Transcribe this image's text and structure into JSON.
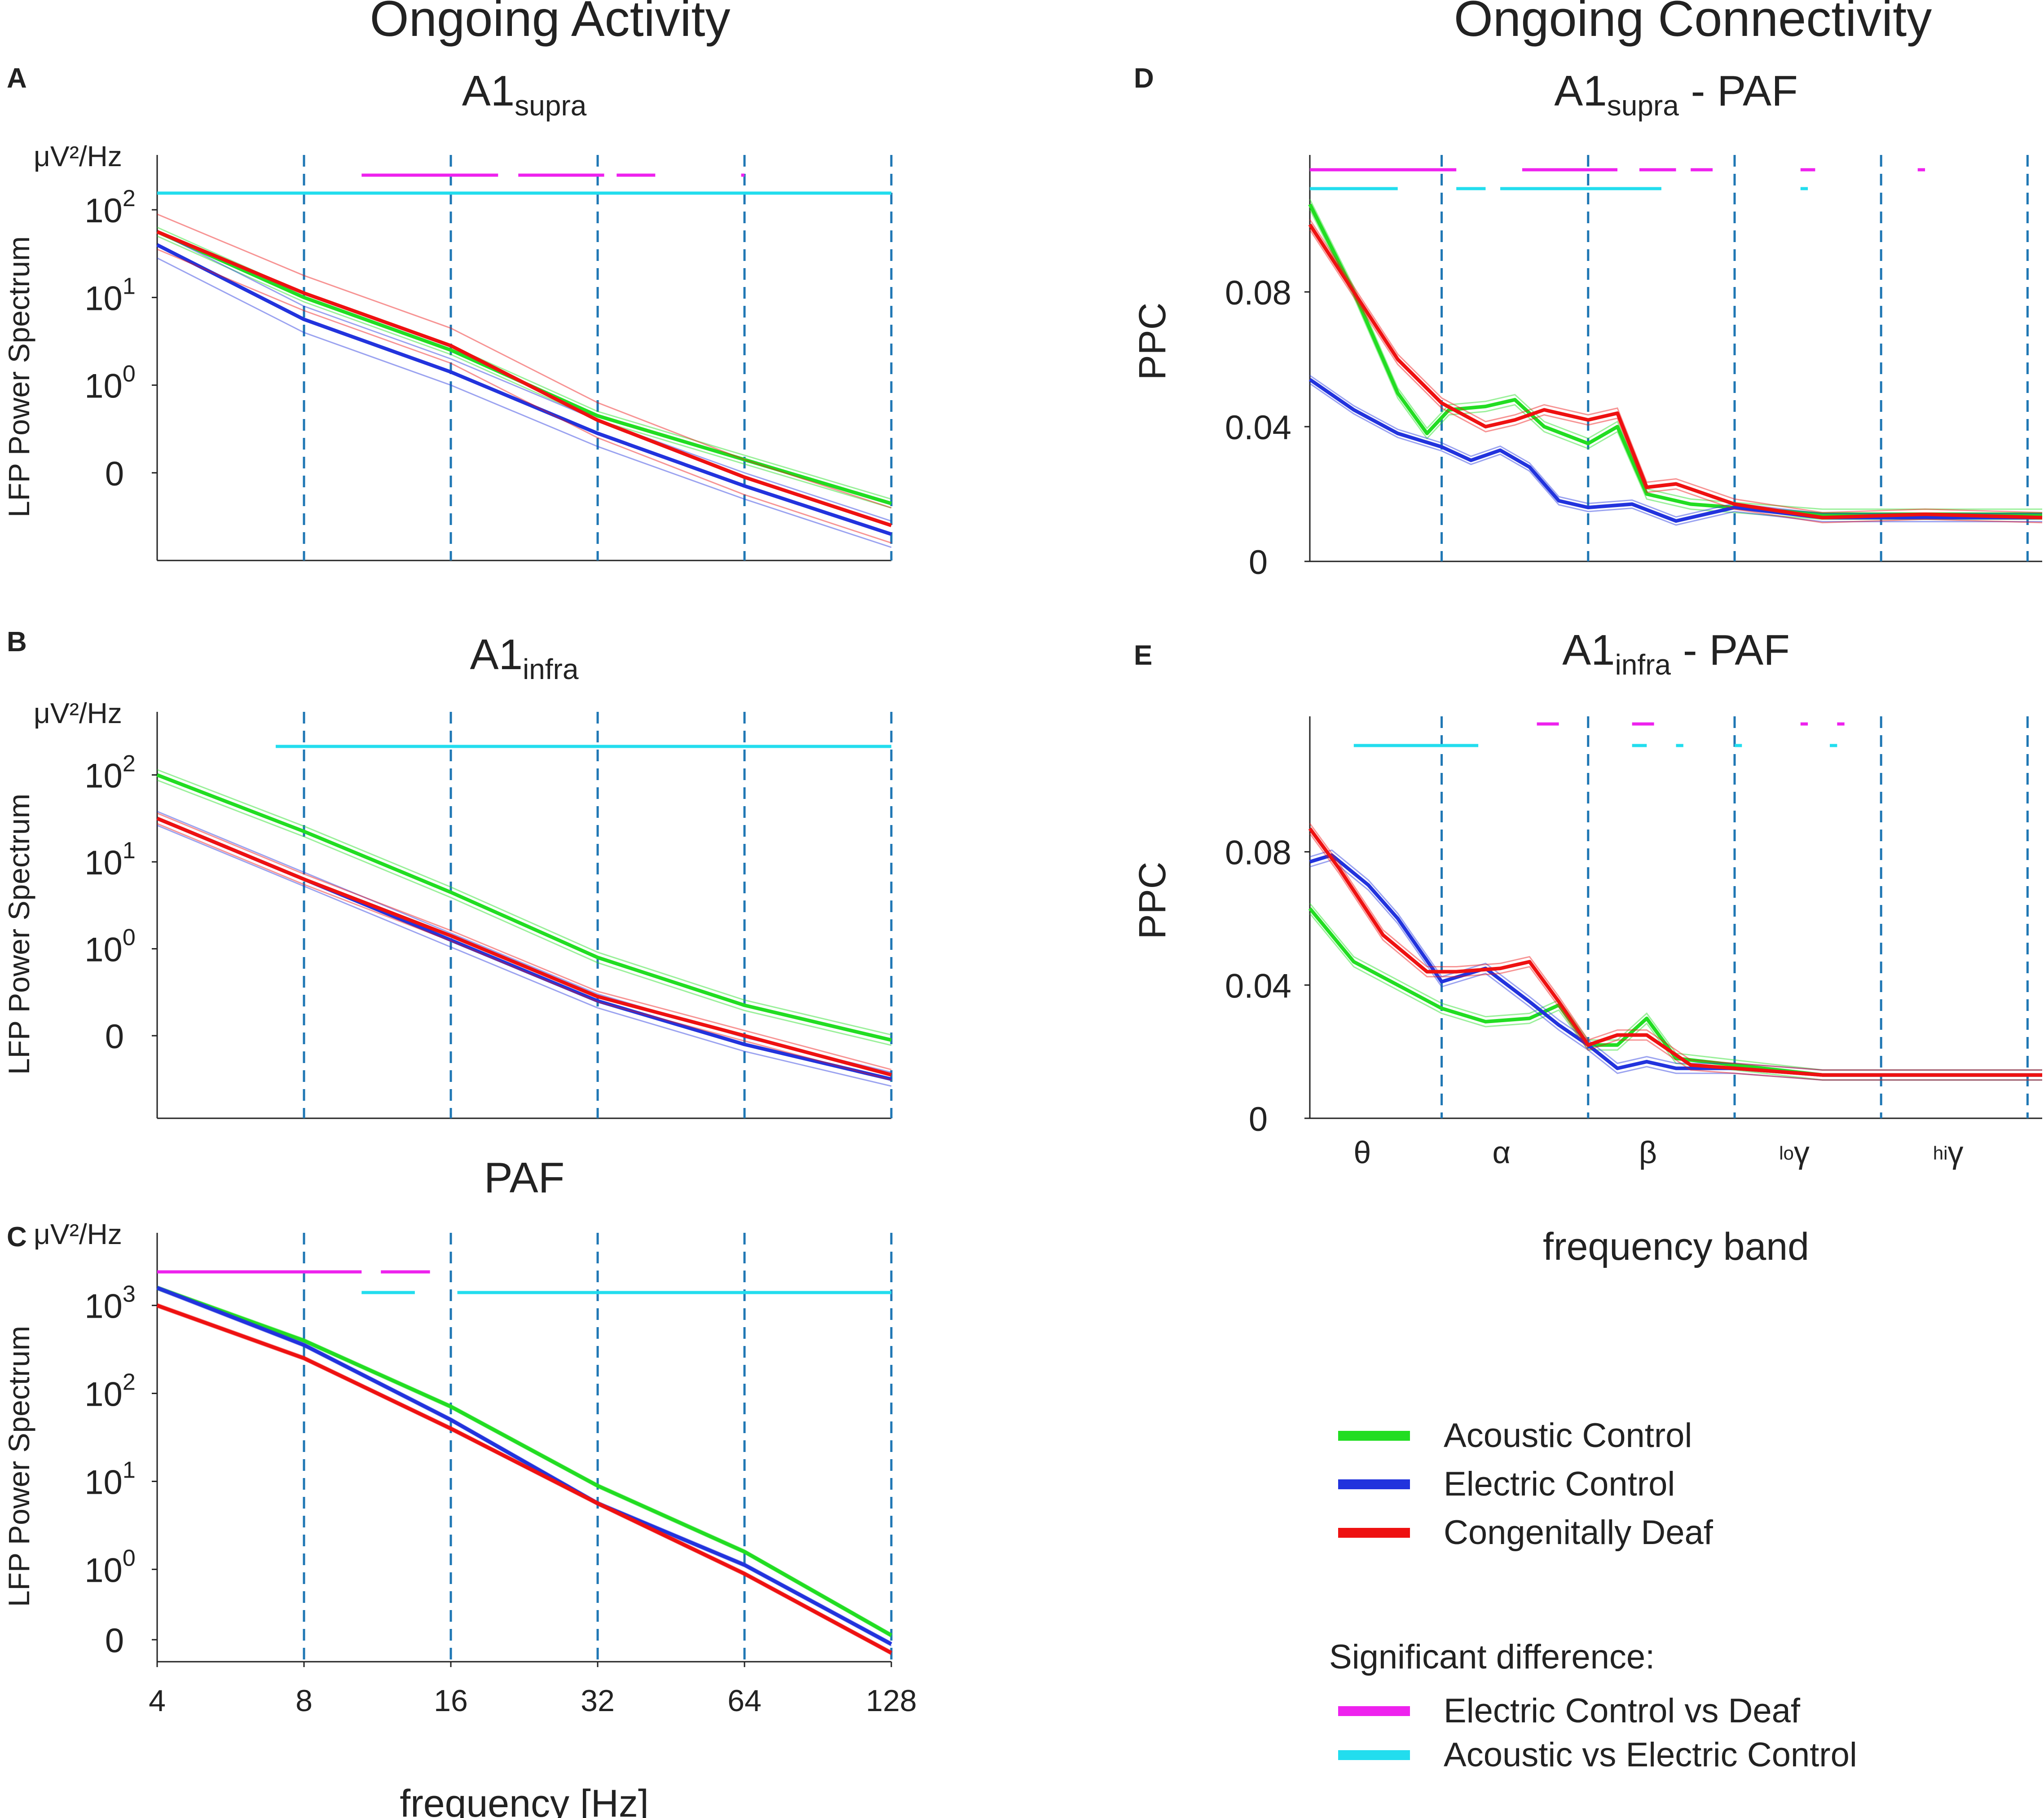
{
  "headings": {
    "left": "Ongoing Activity",
    "right": "Ongoing Connectivity"
  },
  "colors": {
    "acoustic": "#22dd22",
    "electric": "#2233dd",
    "deaf": "#ee1111",
    "sig_electric_vs_deaf": "#ee22ee",
    "sig_acoustic_vs_electric": "#22ddee",
    "band_line": "#1f77b4"
  },
  "legend": {
    "acoustic": "Acoustic Control",
    "electric": "Electric Control",
    "deaf": "Congenitally Deaf",
    "sig_title": "Significant difference:",
    "sig_magenta": "Electric Control vs Deaf",
    "sig_cyan": "Acoustic vs Electric Control"
  },
  "chart_data": [
    {
      "panel": "A",
      "type": "line",
      "title": "A1",
      "title_sub": "supra",
      "xlabel": "",
      "ylabel": "LFP Power Spectrum",
      "yunit": "μV²/Hz",
      "x_scale": "log2",
      "xlim": [
        4,
        128
      ],
      "band_lines": [
        8,
        16,
        32,
        64,
        128
      ],
      "y_ticks": [
        "10^2",
        "10^1",
        "10^0",
        "0"
      ],
      "series": [
        {
          "name": "Acoustic Control",
          "x": [
            4,
            8,
            16,
            32,
            64,
            128
          ],
          "y": [
            1.75,
            1.0,
            0.4,
            -0.35,
            -0.85,
            -1.35
          ],
          "sem": 0.05
        },
        {
          "name": "Electric Control",
          "x": [
            4,
            8,
            16,
            32,
            64,
            128
          ],
          "y": [
            1.6,
            0.75,
            0.15,
            -0.55,
            -1.15,
            -1.7
          ],
          "sem": 0.15
        },
        {
          "name": "Congenitally Deaf",
          "x": [
            4,
            8,
            16,
            32,
            64,
            128
          ],
          "y": [
            1.75,
            1.05,
            0.45,
            -0.4,
            -1.05,
            -1.6
          ],
          "sem": 0.2
        }
      ],
      "significance": {
        "magenta": [
          [
            10.5,
            20
          ],
          [
            22,
            33
          ],
          [
            35,
            42
          ],
          [
            63,
            64
          ]
        ],
        "cyan": [
          [
            4,
            128
          ]
        ]
      }
    },
    {
      "panel": "B",
      "type": "line",
      "title": "A1",
      "title_sub": "infra",
      "xlabel": "",
      "ylabel": "LFP Power Spectrum",
      "yunit": "μV²/Hz",
      "x_scale": "log2",
      "xlim": [
        4,
        128
      ],
      "band_lines": [
        8,
        16,
        32,
        64,
        128
      ],
      "y_ticks": [
        "10^2",
        "10^1",
        "10^0",
        "0"
      ],
      "series": [
        {
          "name": "Acoustic Control",
          "x": [
            4,
            8,
            16,
            32,
            64,
            128
          ],
          "y": [
            2.0,
            1.35,
            0.65,
            -0.1,
            -0.65,
            -1.05
          ],
          "sem": 0.06
        },
        {
          "name": "Electric Control",
          "x": [
            4,
            8,
            16,
            32,
            64,
            128
          ],
          "y": [
            1.5,
            0.8,
            0.1,
            -0.6,
            -1.1,
            -1.5
          ],
          "sem": 0.08
        },
        {
          "name": "Congenitally Deaf",
          "x": [
            4,
            8,
            16,
            32,
            64,
            128
          ],
          "y": [
            1.5,
            0.8,
            0.15,
            -0.55,
            -1.0,
            -1.45
          ],
          "sem": 0.06
        }
      ],
      "significance": {
        "magenta": [],
        "cyan": [
          [
            7,
            128
          ]
        ]
      }
    },
    {
      "panel": "C",
      "type": "line",
      "title": "PAF",
      "title_sub": "",
      "xlabel": "frequency [Hz]",
      "ylabel": "LFP Power Spectrum",
      "yunit": "μV²/Hz",
      "x_scale": "log2",
      "x_ticks": [
        "4",
        "8",
        "16",
        "32",
        "64",
        "128"
      ],
      "xlim": [
        4,
        128
      ],
      "band_lines": [
        8,
        16,
        32,
        64,
        128
      ],
      "y_ticks": [
        "10^3",
        "10^2",
        "10^1",
        "10^0",
        "0"
      ],
      "series": [
        {
          "name": "Acoustic Control",
          "x": [
            4,
            8,
            16,
            32,
            64,
            128
          ],
          "y": [
            3.2,
            2.6,
            1.85,
            0.95,
            0.2,
            -0.75
          ],
          "sem": 0.02
        },
        {
          "name": "Electric Control",
          "x": [
            4,
            8,
            16,
            32,
            64,
            128
          ],
          "y": [
            3.2,
            2.55,
            1.7,
            0.75,
            0.05,
            -0.85
          ],
          "sem": 0.02
        },
        {
          "name": "Congenitally Deaf",
          "x": [
            4,
            8,
            16,
            32,
            64,
            128
          ],
          "y": [
            3.0,
            2.4,
            1.6,
            0.75,
            -0.05,
            -0.95
          ],
          "sem": 0.02
        }
      ],
      "significance": {
        "magenta": [
          [
            4,
            10.5
          ],
          [
            11.5,
            14.5
          ]
        ],
        "cyan": [
          [
            10.5,
            13.5
          ],
          [
            16.5,
            128
          ]
        ]
      }
    },
    {
      "panel": "D",
      "type": "line",
      "title": "A1",
      "title_sub": "supra",
      "title_suffix": " - PAF",
      "xlabel": "",
      "ylabel": "PPC",
      "x_scale": "band",
      "xlim": [
        0,
        5
      ],
      "band_lines": [
        0.9,
        1.9,
        2.9,
        3.9,
        4.9
      ],
      "y_ticks": [
        "0.08",
        "0.04",
        "0"
      ],
      "ylim": [
        0,
        0.12
      ],
      "series": [
        {
          "name": "Acoustic Control",
          "x": [
            0,
            0.3,
            0.6,
            0.8,
            0.95,
            1.2,
            1.4,
            1.6,
            1.9,
            2.1,
            2.3,
            2.6,
            2.9,
            3.5,
            4.2,
            5.0
          ],
          "y": [
            0.106,
            0.08,
            0.05,
            0.038,
            0.045,
            0.046,
            0.048,
            0.04,
            0.035,
            0.04,
            0.02,
            0.017,
            0.016,
            0.014,
            0.014,
            0.014
          ],
          "sem": 0.0015
        },
        {
          "name": "Electric Control",
          "x": [
            0,
            0.3,
            0.6,
            0.9,
            1.1,
            1.3,
            1.5,
            1.7,
            1.9,
            2.2,
            2.5,
            2.9,
            3.5,
            4.2,
            5.0
          ],
          "y": [
            0.054,
            0.045,
            0.038,
            0.034,
            0.03,
            0.033,
            0.028,
            0.018,
            0.016,
            0.017,
            0.012,
            0.016,
            0.013,
            0.013,
            0.013
          ],
          "sem": 0.0012
        },
        {
          "name": "Congenitally Deaf",
          "x": [
            0,
            0.3,
            0.6,
            0.9,
            1.2,
            1.4,
            1.6,
            1.9,
            2.1,
            2.3,
            2.5,
            2.9,
            3.5,
            4.2,
            5.0
          ],
          "y": [
            0.1,
            0.08,
            0.06,
            0.047,
            0.04,
            0.042,
            0.045,
            0.042,
            0.044,
            0.022,
            0.023,
            0.017,
            0.013,
            0.014,
            0.013
          ],
          "sem": 0.0015
        }
      ],
      "significance": {
        "magenta": [
          [
            0,
            1.0
          ],
          [
            1.45,
            2.1
          ],
          [
            2.25,
            2.5
          ],
          [
            2.6,
            2.75
          ],
          [
            3.35,
            3.45
          ],
          [
            4.15,
            4.2
          ]
        ],
        "cyan": [
          [
            0,
            0.6
          ],
          [
            1.0,
            1.2
          ],
          [
            1.3,
            2.4
          ],
          [
            3.35,
            3.4
          ]
        ]
      }
    },
    {
      "panel": "E",
      "type": "line",
      "title": "A1",
      "title_sub": "infra",
      "title_suffix": " - PAF",
      "xlabel": "frequency band",
      "ylabel": "PPC",
      "x_scale": "band",
      "x_band_labels": [
        {
          "label": "θ",
          "pre": ""
        },
        {
          "label": "α",
          "pre": ""
        },
        {
          "label": "β",
          "pre": ""
        },
        {
          "label": "γ",
          "pre": "lo"
        },
        {
          "label": "γ",
          "pre": "hi"
        }
      ],
      "xlim": [
        0,
        5
      ],
      "band_lines": [
        0.9,
        1.9,
        2.9,
        3.9,
        4.9
      ],
      "y_ticks": [
        "0.08",
        "0.04",
        "0"
      ],
      "ylim": [
        0,
        0.12
      ],
      "series": [
        {
          "name": "Acoustic Control",
          "x": [
            0,
            0.3,
            0.6,
            0.9,
            1.2,
            1.5,
            1.7,
            1.9,
            2.1,
            2.3,
            2.5,
            2.9,
            3.5,
            4.2,
            5.0
          ],
          "y": [
            0.063,
            0.047,
            0.04,
            0.033,
            0.029,
            0.03,
            0.034,
            0.022,
            0.022,
            0.03,
            0.018,
            0.016,
            0.013,
            0.013,
            0.013
          ],
          "sem": 0.0015
        },
        {
          "name": "Electric Control",
          "x": [
            0,
            0.15,
            0.4,
            0.6,
            0.9,
            1.2,
            1.5,
            1.7,
            1.9,
            2.1,
            2.3,
            2.5,
            2.9,
            3.5,
            4.2,
            5.0
          ],
          "y": [
            0.077,
            0.079,
            0.07,
            0.06,
            0.041,
            0.045,
            0.035,
            0.028,
            0.022,
            0.015,
            0.017,
            0.015,
            0.015,
            0.013,
            0.013,
            0.013
          ],
          "sem": 0.0015
        },
        {
          "name": "Congenitally Deaf",
          "x": [
            0,
            0.2,
            0.5,
            0.8,
            1.0,
            1.3,
            1.5,
            1.7,
            1.9,
            2.1,
            2.3,
            2.6,
            2.9,
            3.5,
            4.2,
            5.0
          ],
          "y": [
            0.087,
            0.075,
            0.055,
            0.044,
            0.044,
            0.045,
            0.047,
            0.035,
            0.022,
            0.025,
            0.025,
            0.016,
            0.015,
            0.013,
            0.013,
            0.013
          ],
          "sem": 0.0015
        }
      ],
      "significance": {
        "magenta": [
          [
            1.55,
            1.7
          ],
          [
            2.2,
            2.35
          ],
          [
            3.35,
            3.4
          ],
          [
            3.6,
            3.65
          ]
        ],
        "cyan": [
          [
            0.3,
            1.15
          ],
          [
            2.2,
            2.3
          ],
          [
            2.5,
            2.55
          ],
          [
            2.9,
            2.95
          ],
          [
            3.55,
            3.6
          ]
        ]
      }
    }
  ]
}
